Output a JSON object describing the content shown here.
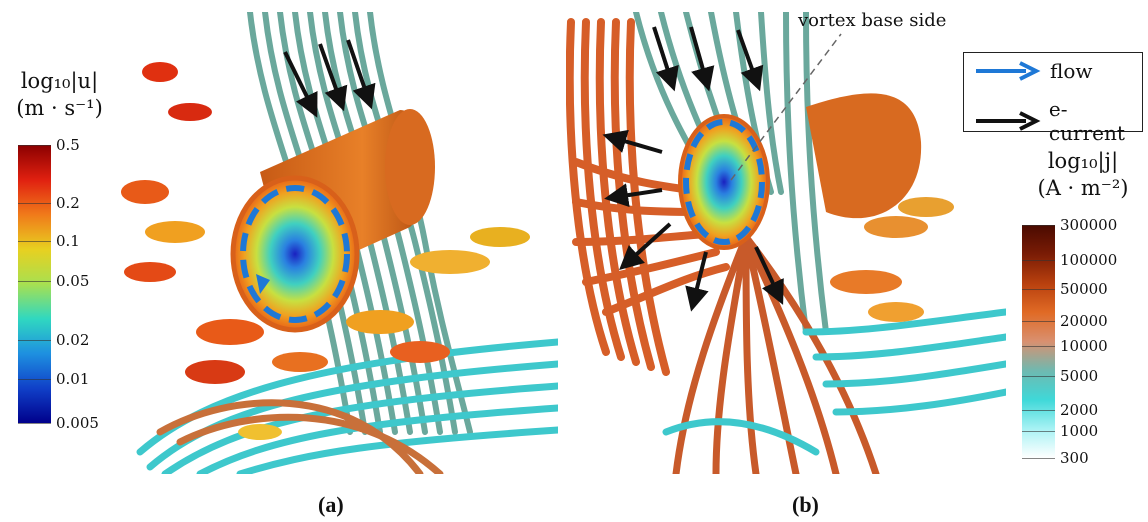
{
  "figure": {
    "panel_a_label": "(a)",
    "panel_b_label": "(b)"
  },
  "colorbar_u": {
    "title_line1": "log₁₀|u|",
    "title_line2": "(m · s⁻¹)",
    "ticks": [
      "0.5",
      "0.2",
      "0.1",
      "0.05",
      "0.02",
      "0.01",
      "0.005"
    ],
    "colors": [
      "#8b0000",
      "#e02010",
      "#f07a1a",
      "#e8d020",
      "#a8e050",
      "#30d8c0",
      "#1e90e0",
      "#1040c8",
      "#00008b"
    ]
  },
  "colorbar_j": {
    "title_line1": "log₁₀|j|",
    "title_line2": "(A · m⁻²)",
    "ticks": [
      "300000",
      "100000",
      "50000",
      "20000",
      "10000",
      "5000",
      "2000",
      "1000",
      "300"
    ],
    "colors": [
      "#4a0a00",
      "#7a1c05",
      "#b8400e",
      "#e06a25",
      "#d99070",
      "#6fb9b0",
      "#3fd8d8",
      "#a8f2f4",
      "#ffffff"
    ]
  },
  "legend": {
    "flow_label": "flow",
    "current_label": "e-current",
    "flow_color": "#1e78d6",
    "current_color": "#111111"
  },
  "annotation": {
    "vortex_label": "vortex base side"
  },
  "colors": {
    "tube_teal": "#5fa79a",
    "tube_cyan": "#35cdd2",
    "tube_orange": "#d8622a",
    "cylinder_orange": "#e07a22",
    "dashed_blue": "#1e78d6"
  }
}
